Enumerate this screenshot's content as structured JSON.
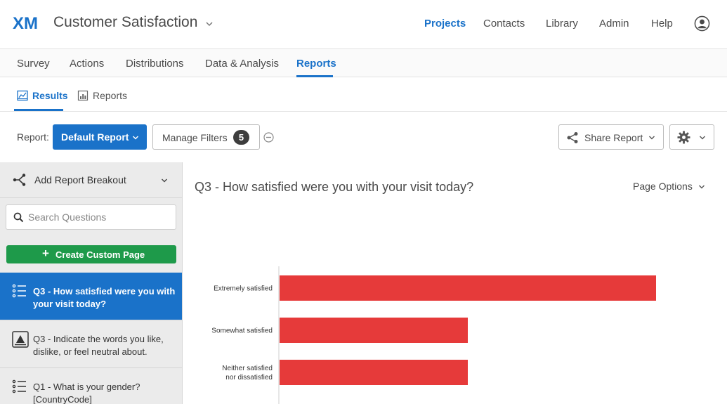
{
  "header": {
    "logo": "XM",
    "app_title": "Customer Satisfaction",
    "nav": [
      {
        "label": "Projects",
        "active": true
      },
      {
        "label": "Contacts",
        "active": false
      },
      {
        "label": "Library",
        "active": false
      },
      {
        "label": "Admin",
        "active": false
      },
      {
        "label": "Help",
        "active": false
      }
    ]
  },
  "tabs": [
    {
      "label": "Survey",
      "active": false
    },
    {
      "label": "Actions",
      "active": false
    },
    {
      "label": "Distributions",
      "active": false
    },
    {
      "label": "Data & Analysis",
      "active": false
    },
    {
      "label": "Reports",
      "active": true
    }
  ],
  "subtabs": [
    {
      "label": "Results",
      "icon": "results-chart-icon",
      "active": true
    },
    {
      "label": "Reports",
      "icon": "report-bar-icon",
      "active": false
    }
  ],
  "toolbar": {
    "report_label": "Report:",
    "report_button": "Default Report",
    "manage_filters": "Manage Filters",
    "filter_count": "5",
    "share_report": "Share Report"
  },
  "sidebar": {
    "breakout_label": "Add Report Breakout",
    "search_placeholder": "Search Questions",
    "create_custom_page": "Create Custom Page",
    "questions": [
      {
        "label": "Q3 - How satisfied were you with your visit today?",
        "icon": "multiple-choice-icon",
        "selected": true
      },
      {
        "label": "Q3 - Indicate the words you like, dislike, or feel neutral about.",
        "icon": "highlight-icon",
        "selected": false
      },
      {
        "label": "Q1 - What is your gender? [CountryCode]",
        "icon": "multiple-choice-icon",
        "selected": false
      }
    ]
  },
  "main": {
    "question_title": "Q3 - How satisfied were you with your visit today?",
    "page_options": "Page Options"
  },
  "colors": {
    "accent": "#1a72c9",
    "create_button": "#1e9a4a",
    "bar": "#e63a3a"
  },
  "chart_data": {
    "type": "bar",
    "orientation": "horizontal",
    "categories": [
      "Extremely satisfied",
      "Somewhat satisfied",
      "Neither satisfied nor dissatisfied"
    ],
    "category_lines": [
      [
        "Extremely satisfied"
      ],
      [
        "Somewhat satisfied"
      ],
      [
        "Neither satisfied",
        "nor dissatisfied"
      ]
    ],
    "values": [
      100,
      50,
      50
    ],
    "xlim": [
      0,
      100
    ],
    "title": "",
    "xlabel": "",
    "ylabel": "",
    "grid": false,
    "legend": "none"
  }
}
